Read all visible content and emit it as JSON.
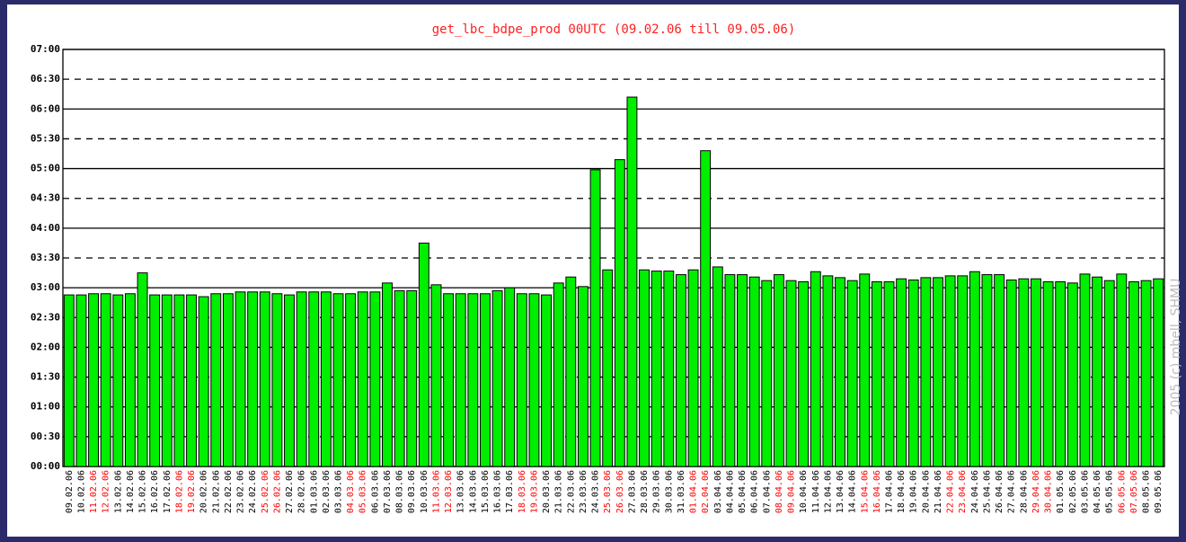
{
  "chart_data": {
    "type": "bar",
    "title": "get_lbc_bdpe_prod 00UTC (09.02.06 till 09.05.06)",
    "credit": "2005 (c) mbell, SHMU",
    "color": "#00ee00",
    "categories": [
      "09.02.06",
      "10.02.06",
      "11.02.06",
      "12.02.06",
      "13.02.06",
      "14.02.06",
      "15.02.06",
      "16.02.06",
      "17.02.06",
      "18.02.06",
      "19.02.06",
      "20.02.06",
      "21.02.06",
      "22.02.06",
      "23.02.06",
      "24.02.06",
      "25.02.06",
      "26.02.06",
      "27.02.06",
      "28.02.06",
      "01.03.06",
      "02.03.06",
      "03.03.06",
      "04.03.06",
      "05.03.06",
      "06.03.06",
      "07.03.06",
      "08.03.06",
      "09.03.06",
      "10.03.06",
      "11.03.06",
      "12.03.06",
      "13.03.06",
      "14.03.06",
      "15.03.06",
      "16.03.06",
      "17.03.06",
      "18.03.06",
      "19.03.06",
      "20.03.06",
      "21.03.06",
      "22.03.06",
      "23.03.06",
      "24.03.06",
      "25.03.06",
      "26.03.06",
      "27.03.06",
      "28.03.06",
      "29.03.06",
      "30.03.06",
      "31.03.06",
      "01.04.06",
      "02.04.06",
      "03.04.06",
      "04.04.06",
      "05.04.06",
      "06.04.06",
      "07.04.06",
      "08.04.06",
      "09.04.06",
      "10.04.06",
      "11.04.06",
      "12.04.06",
      "13.04.06",
      "14.04.06",
      "15.04.06",
      "16.04.06",
      "17.04.06",
      "18.04.06",
      "19.04.06",
      "20.04.06",
      "21.04.06",
      "22.04.06",
      "23.04.06",
      "24.04.06",
      "25.04.06",
      "26.04.06",
      "27.04.06",
      "28.04.06",
      "29.04.06",
      "30.04.06",
      "01.05.06",
      "02.05.06",
      "03.05.06",
      "04.05.06",
      "05.05.06",
      "06.05.06",
      "07.05.06",
      "08.05.06",
      "09.05.06"
    ],
    "category_label_colors": [
      "#000000",
      "#000000",
      "#ff0000",
      "#ff0000",
      "#000000",
      "#000000",
      "#000000",
      "#000000",
      "#000000",
      "#ff0000",
      "#ff0000",
      "#000000",
      "#000000",
      "#000000",
      "#000000",
      "#000000",
      "#ff0000",
      "#ff0000",
      "#000000",
      "#000000",
      "#000000",
      "#000000",
      "#000000",
      "#ff0000",
      "#ff0000",
      "#000000",
      "#000000",
      "#000000",
      "#000000",
      "#000000",
      "#ff0000",
      "#ff0000",
      "#000000",
      "#000000",
      "#000000",
      "#000000",
      "#000000",
      "#ff0000",
      "#ff0000",
      "#000000",
      "#000000",
      "#000000",
      "#000000",
      "#000000",
      "#ff0000",
      "#ff0000",
      "#000000",
      "#000000",
      "#000000",
      "#000000",
      "#000000",
      "#ff0000",
      "#ff0000",
      "#000000",
      "#000000",
      "#000000",
      "#000000",
      "#000000",
      "#ff0000",
      "#ff0000",
      "#000000",
      "#000000",
      "#000000",
      "#000000",
      "#000000",
      "#ff0000",
      "#ff0000",
      "#000000",
      "#000000",
      "#000000",
      "#000000",
      "#000000",
      "#ff0000",
      "#ff0000",
      "#000000",
      "#000000",
      "#000000",
      "#000000",
      "#000000",
      "#ff0000",
      "#ff0000",
      "#000000",
      "#000000",
      "#000000",
      "#000000",
      "#000000",
      "#ff0000",
      "#ff0000",
      "#000000",
      "#000000"
    ],
    "values": [
      2.88,
      2.88,
      2.9,
      2.9,
      2.88,
      2.9,
      3.25,
      2.88,
      2.88,
      2.88,
      2.88,
      2.85,
      2.9,
      2.9,
      2.93,
      2.93,
      2.93,
      2.9,
      2.88,
      2.93,
      2.93,
      2.93,
      2.9,
      2.9,
      2.93,
      2.93,
      3.08,
      2.95,
      2.95,
      3.75,
      3.05,
      2.9,
      2.9,
      2.9,
      2.9,
      2.95,
      3.0,
      2.9,
      2.9,
      2.88,
      3.08,
      3.18,
      3.02,
      4.98,
      3.3,
      5.15,
      6.2,
      3.3,
      3.28,
      3.28,
      3.22,
      3.3,
      5.3,
      3.35,
      3.22,
      3.22,
      3.18,
      3.12,
      3.22,
      3.12,
      3.1,
      3.27,
      3.2,
      3.17,
      3.12,
      3.23,
      3.1,
      3.1,
      3.15,
      3.13,
      3.17,
      3.17,
      3.2,
      3.2,
      3.27,
      3.22,
      3.22,
      3.13,
      3.15,
      3.15,
      3.1,
      3.1,
      3.08,
      3.23,
      3.18,
      3.12,
      3.23,
      3.1,
      3.12,
      3.15
    ],
    "ylim": [
      0,
      7
    ],
    "yticks": [
      {
        "value": 0,
        "label": "00:00"
      },
      {
        "value": 0.5,
        "label": "00:30"
      },
      {
        "value": 1,
        "label": "01:00"
      },
      {
        "value": 1.5,
        "label": "01:30"
      },
      {
        "value": 2,
        "label": "02:00"
      },
      {
        "value": 2.5,
        "label": "02:30"
      },
      {
        "value": 3,
        "label": "03:00"
      },
      {
        "value": 3.5,
        "label": "03:30"
      },
      {
        "value": 4,
        "label": "04:00"
      },
      {
        "value": 4.5,
        "label": "04:30"
      },
      {
        "value": 5,
        "label": "05:00"
      },
      {
        "value": 5.5,
        "label": "05:30"
      },
      {
        "value": 6,
        "label": "06:00"
      },
      {
        "value": 6.5,
        "label": "06:30"
      },
      {
        "value": 7,
        "label": "07:00"
      }
    ],
    "grid": true
  }
}
